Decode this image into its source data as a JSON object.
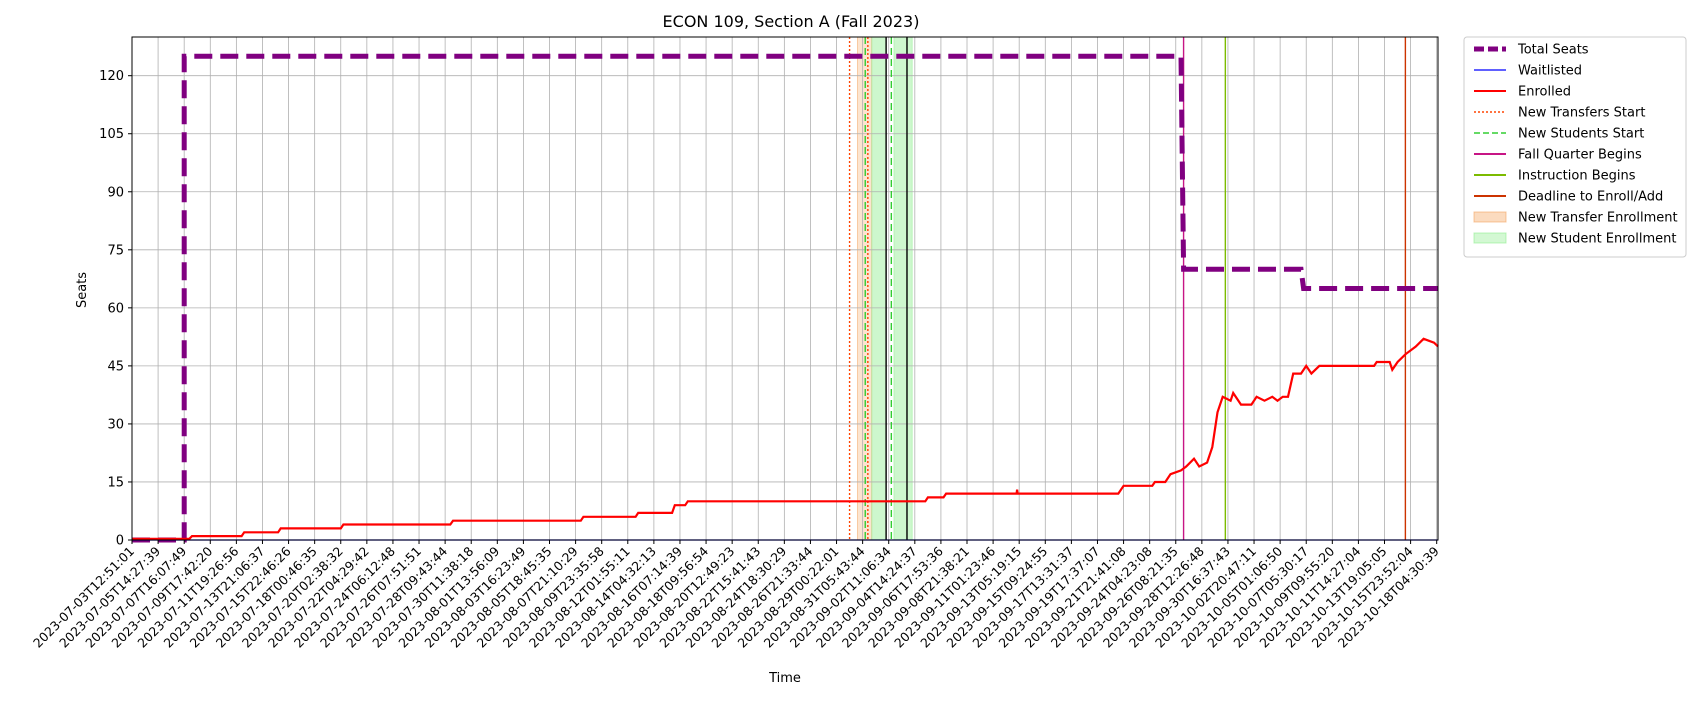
{
  "chart_data": {
    "type": "line",
    "title": "ECON 109, Section A (Fall 2023)",
    "xlabel": "Time",
    "ylabel": "Seats",
    "ylim": [
      0,
      130
    ],
    "yticks": [
      0,
      15,
      30,
      45,
      60,
      75,
      90,
      105,
      120
    ],
    "grid": true,
    "legend_position": "outside-right-top",
    "x_tick_labels": [
      "2023-07-03T12:51:01",
      "2023-07-05T14:27:39",
      "2023-07-07T16:07:49",
      "2023-07-09T17:42:20",
      "2023-07-11T19:26:56",
      "2023-07-13T21:06:37",
      "2023-07-15T22:46:26",
      "2023-07-18T00:46:35",
      "2023-07-20T02:38:32",
      "2023-07-22T04:29:42",
      "2023-07-24T06:12:48",
      "2023-07-26T07:51:51",
      "2023-07-28T09:43:44",
      "2023-07-30T11:38:18",
      "2023-08-01T13:56:09",
      "2023-08-03T16:23:49",
      "2023-08-05T18:45:35",
      "2023-08-07T21:10:29",
      "2023-08-09T23:35:58",
      "2023-08-12T01:55:11",
      "2023-08-14T04:32:13",
      "2023-08-16T07:14:39",
      "2023-08-18T09:56:54",
      "2023-08-20T12:49:23",
      "2023-08-22T15:41:43",
      "2023-08-24T18:30:29",
      "2023-08-26T21:33:44",
      "2023-08-29T00:22:01",
      "2023-08-31T05:43:44",
      "2023-09-02T11:06:34",
      "2023-09-04T14:24:37",
      "2023-09-06T17:53:36",
      "2023-09-08T21:38:21",
      "2023-09-11T01:23:46",
      "2023-09-13T05:19:15",
      "2023-09-15T09:24:55",
      "2023-09-17T13:31:37",
      "2023-09-19T17:37:07",
      "2023-09-21T21:41:08",
      "2023-09-24T04:23:08",
      "2023-09-26T08:21:35",
      "2023-09-28T12:26:48",
      "2023-09-30T16:37:43",
      "2023-10-02T20:47:11",
      "2023-10-05T01:06:50",
      "2023-10-07T05:30:17",
      "2023-10-09T09:55:20",
      "2023-10-11T14:27:04",
      "2023-10-13T19:05:05",
      "2023-10-15T23:52:04",
      "2023-10-18T04:30:39"
    ],
    "series": [
      {
        "name": "Total Seats",
        "color": "#800080",
        "style": "dashed-thick",
        "points": [
          [
            0,
            0
          ],
          [
            2,
            0
          ],
          [
            2,
            125
          ],
          [
            40.2,
            125
          ],
          [
            40.3,
            70
          ],
          [
            44.8,
            70
          ],
          [
            44.9,
            65
          ],
          [
            50.1,
            65
          ]
        ]
      },
      {
        "name": "Waitlisted",
        "color": "#0000ff",
        "style": "solid-thin",
        "points": [
          [
            0,
            0
          ],
          [
            50.1,
            0
          ]
        ]
      },
      {
        "name": "Enrolled",
        "color": "#ff0000",
        "style": "solid",
        "points": [
          [
            0,
            0.3
          ],
          [
            2.2,
            0.3
          ],
          [
            2.3,
            1
          ],
          [
            4.2,
            1
          ],
          [
            4.3,
            2
          ],
          [
            5.6,
            2
          ],
          [
            5.7,
            3
          ],
          [
            8,
            3
          ],
          [
            8.1,
            4
          ],
          [
            12.2,
            4
          ],
          [
            12.3,
            5
          ],
          [
            17.2,
            5
          ],
          [
            17.3,
            6
          ],
          [
            19.3,
            6
          ],
          [
            19.4,
            7
          ],
          [
            20.7,
            7
          ],
          [
            20.8,
            9
          ],
          [
            21.2,
            9
          ],
          [
            21.3,
            10
          ],
          [
            30.4,
            10
          ],
          [
            30.5,
            11
          ],
          [
            31.1,
            11
          ],
          [
            31.2,
            12
          ],
          [
            33.9,
            12
          ],
          [
            33.92,
            13
          ],
          [
            33.94,
            12
          ],
          [
            37.8,
            12
          ],
          [
            38,
            14
          ],
          [
            39.1,
            14
          ],
          [
            39.2,
            15
          ],
          [
            39.6,
            15
          ],
          [
            39.8,
            17
          ],
          [
            40.2,
            18
          ],
          [
            40.4,
            19
          ],
          [
            40.7,
            21
          ],
          [
            40.9,
            19
          ],
          [
            41.2,
            20
          ],
          [
            41.4,
            24
          ],
          [
            41.6,
            33
          ],
          [
            41.8,
            37
          ],
          [
            42.1,
            36
          ],
          [
            42.2,
            38
          ],
          [
            42.5,
            35
          ],
          [
            42.9,
            35
          ],
          [
            43.1,
            37
          ],
          [
            43.4,
            36
          ],
          [
            43.7,
            37
          ],
          [
            43.9,
            36
          ],
          [
            44.1,
            37
          ],
          [
            44.3,
            37
          ],
          [
            44.5,
            43
          ],
          [
            44.8,
            43
          ],
          [
            45.0,
            45
          ],
          [
            45.2,
            43
          ],
          [
            45.5,
            45
          ],
          [
            47.6,
            45
          ],
          [
            47.7,
            46
          ],
          [
            48.2,
            46
          ],
          [
            48.3,
            44
          ],
          [
            48.5,
            46
          ],
          [
            48.8,
            48
          ],
          [
            49.2,
            50
          ],
          [
            49.5,
            52
          ],
          [
            49.9,
            51
          ],
          [
            50.1,
            50
          ]
        ]
      }
    ],
    "vertical_lines": [
      {
        "name": "New Transfers Start",
        "color": "#ff4500",
        "style": "dotted",
        "x": [
          27.5,
          28.2
        ]
      },
      {
        "name": "New Students Start",
        "color": "#32cd32",
        "style": "dashed",
        "x": [
          28.1,
          29.1
        ]
      },
      {
        "name": "Fall Quarter Begins",
        "color": "#c71585",
        "style": "solid",
        "x": [
          40.3
        ]
      },
      {
        "name": "Instruction Begins",
        "color": "#7cbb00",
        "style": "solid",
        "x": [
          41.9
        ]
      },
      {
        "name": "Deadline to Enroll/Add",
        "color": "#cc3300",
        "style": "solid",
        "x": [
          48.8
        ]
      },
      {
        "name": "Black markers",
        "color": "#000000",
        "style": "solid",
        "x": [
          28.9,
          29.7
        ]
      }
    ],
    "spans": [
      {
        "name": "New Transfer Enrollment",
        "color": "#f4a460",
        "opacity": 0.3,
        "ranges": [
          [
            27.8,
            28.35
          ]
        ]
      },
      {
        "name": "New Student Enrollment",
        "color": "#90ee90",
        "opacity": 0.45,
        "ranges": [
          [
            28.35,
            28.9
          ],
          [
            29.2,
            29.9
          ]
        ]
      }
    ],
    "legend": [
      {
        "label": "Total Seats",
        "color": "#800080",
        "kind": "line-dashed-thick"
      },
      {
        "label": "Waitlisted",
        "color": "#0000ff",
        "kind": "line-thin"
      },
      {
        "label": "Enrolled",
        "color": "#ff0000",
        "kind": "line"
      },
      {
        "label": "New Transfers Start",
        "color": "#ff4500",
        "kind": "line-dotted"
      },
      {
        "label": "New Students Start",
        "color": "#32cd32",
        "kind": "line-dashed"
      },
      {
        "label": "Fall Quarter Begins",
        "color": "#c71585",
        "kind": "line"
      },
      {
        "label": "Instruction Begins",
        "color": "#7cbb00",
        "kind": "line"
      },
      {
        "label": "Deadline to Enroll/Add",
        "color": "#cc3300",
        "kind": "line"
      },
      {
        "label": "New Transfer Enrollment",
        "color": "#f4a460",
        "kind": "patch"
      },
      {
        "label": "New Student Enrollment",
        "color": "#90ee90",
        "kind": "patch"
      }
    ]
  }
}
